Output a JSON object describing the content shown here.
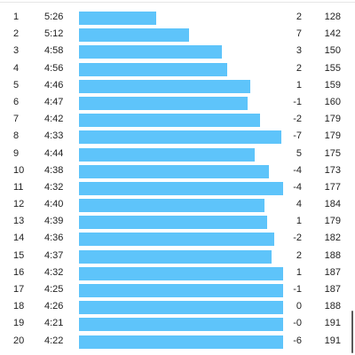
{
  "splits": [
    {
      "km": "1",
      "pace": "5:26",
      "pace_seconds": 326,
      "elevation": "2",
      "hr": "128"
    },
    {
      "km": "2",
      "pace": "5:12",
      "pace_seconds": 312,
      "elevation": "7",
      "hr": "142"
    },
    {
      "km": "3",
      "pace": "4:58",
      "pace_seconds": 298,
      "elevation": "3",
      "hr": "150"
    },
    {
      "km": "4",
      "pace": "4:56",
      "pace_seconds": 296,
      "elevation": "2",
      "hr": "155"
    },
    {
      "km": "5",
      "pace": "4:46",
      "pace_seconds": 286,
      "elevation": "1",
      "hr": "159"
    },
    {
      "km": "6",
      "pace": "4:47",
      "pace_seconds": 287,
      "elevation": "-1",
      "hr": "160"
    },
    {
      "km": "7",
      "pace": "4:42",
      "pace_seconds": 282,
      "elevation": "-2",
      "hr": "179"
    },
    {
      "km": "8",
      "pace": "4:33",
      "pace_seconds": 273,
      "elevation": "-7",
      "hr": "179"
    },
    {
      "km": "9",
      "pace": "4:44",
      "pace_seconds": 284,
      "elevation": "5",
      "hr": "175"
    },
    {
      "km": "10",
      "pace": "4:38",
      "pace_seconds": 278,
      "elevation": "-4",
      "hr": "173"
    },
    {
      "km": "11",
      "pace": "4:32",
      "pace_seconds": 272,
      "elevation": "-4",
      "hr": "177"
    },
    {
      "km": "12",
      "pace": "4:40",
      "pace_seconds": 280,
      "elevation": "4",
      "hr": "184"
    },
    {
      "km": "13",
      "pace": "4:39",
      "pace_seconds": 279,
      "elevation": "1",
      "hr": "179"
    },
    {
      "km": "14",
      "pace": "4:36",
      "pace_seconds": 276,
      "elevation": "-2",
      "hr": "182"
    },
    {
      "km": "15",
      "pace": "4:37",
      "pace_seconds": 277,
      "elevation": "2",
      "hr": "188"
    },
    {
      "km": "16",
      "pace": "4:32",
      "pace_seconds": 272,
      "elevation": "1",
      "hr": "187"
    },
    {
      "km": "17",
      "pace": "4:25",
      "pace_seconds": 265,
      "elevation": "-1",
      "hr": "187"
    },
    {
      "km": "18",
      "pace": "4:26",
      "pace_seconds": 266,
      "elevation": "0",
      "hr": "188"
    },
    {
      "km": "19",
      "pace": "4:21",
      "pace_seconds": 261,
      "elevation": "-0",
      "hr": "191"
    },
    {
      "km": "20",
      "pace": "4:22",
      "pace_seconds": 262,
      "elevation": "-6",
      "hr": "191"
    }
  ],
  "bar_color": "#5ec4fa"
}
